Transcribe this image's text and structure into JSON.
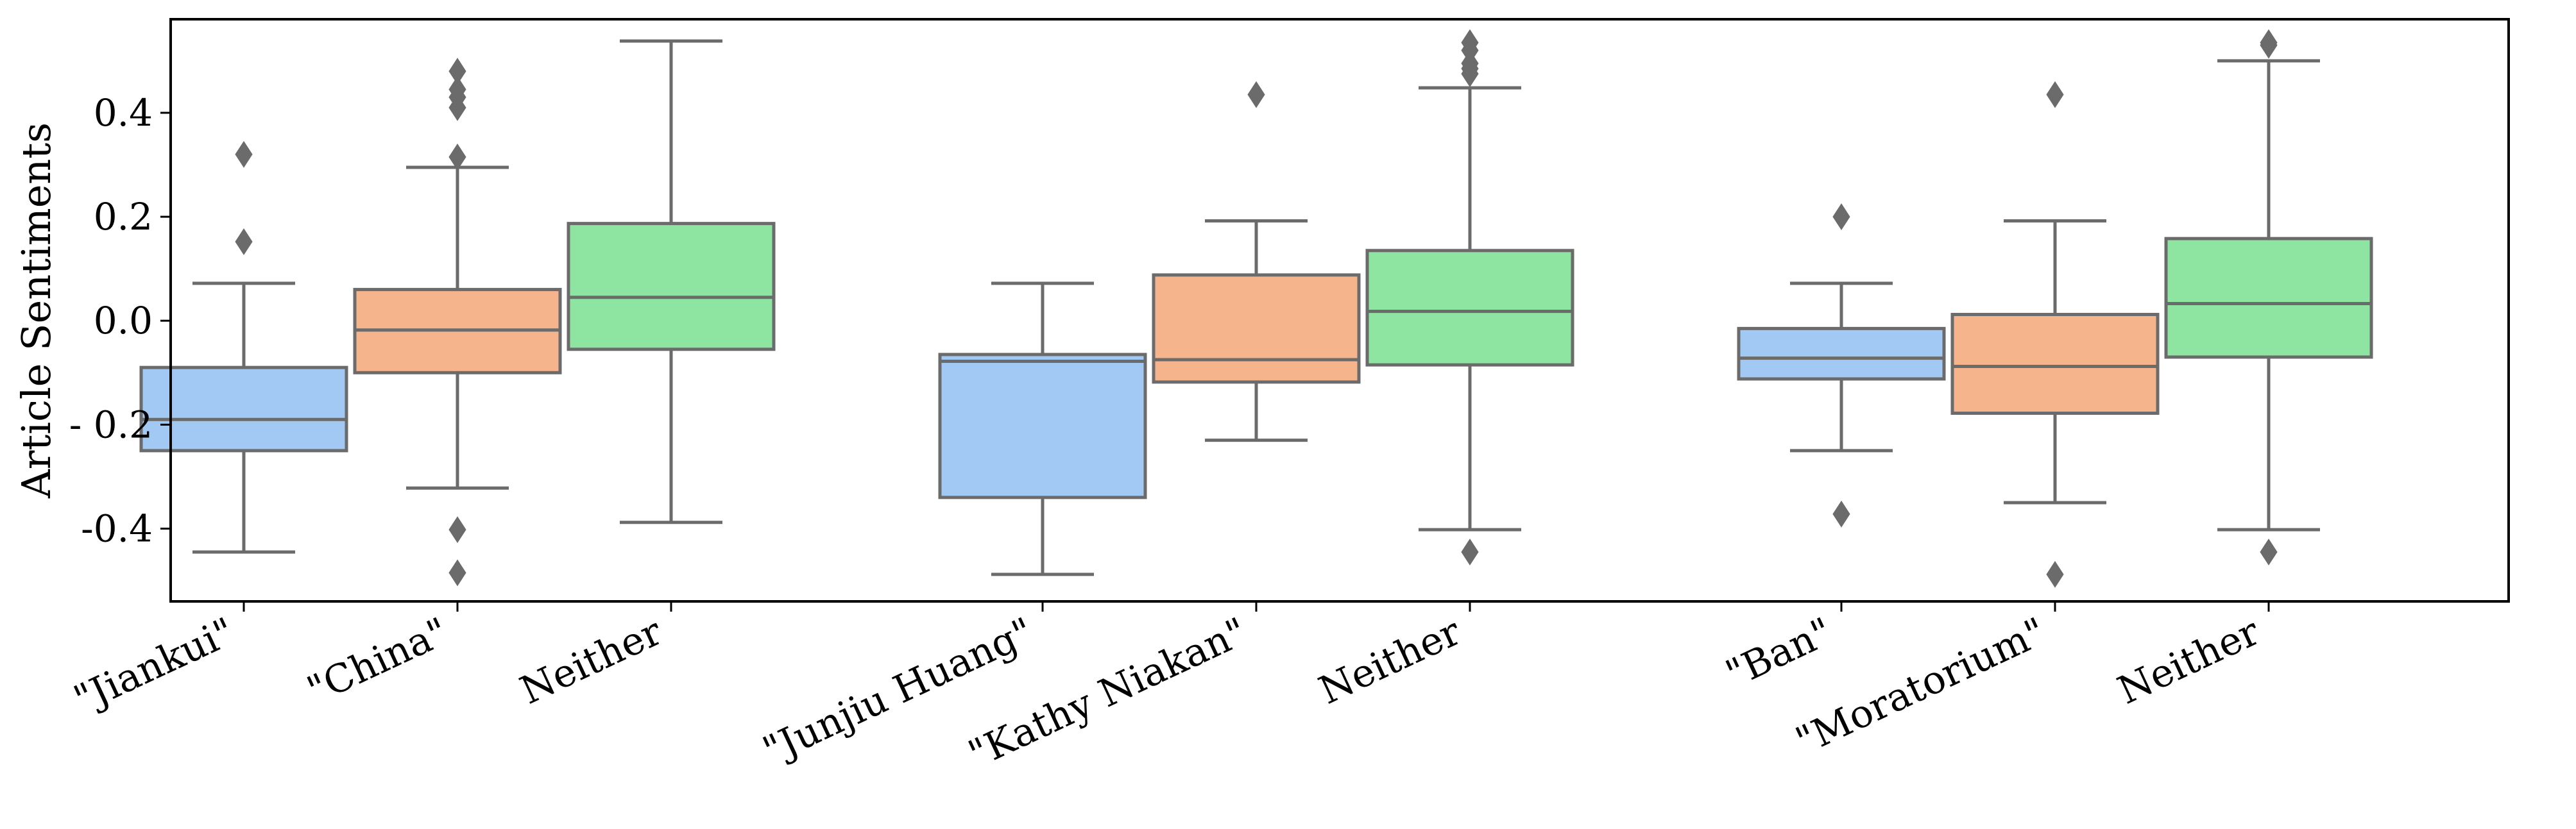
{
  "chart_data": {
    "type": "box",
    "title": "",
    "xlabel": "",
    "ylabel": "Article Sentiments",
    "ylim": [
      -0.54,
      0.58
    ],
    "yticks": [
      0.4,
      0.2,
      0.0,
      -0.2,
      -0.4
    ],
    "ytick_labels": [
      "0.4",
      "0.2",
      "0.0",
      "- 0.2",
      "-0.4"
    ],
    "grid": false,
    "legend": "none",
    "colors": {
      "a": "#a1c9f4",
      "b": "#f6b48d",
      "c": "#8de5a1",
      "line": "#6b6b6b",
      "frame": "#000000"
    },
    "groups": [
      {
        "boxes": [
          {
            "label": "\"Jiankui\"",
            "color": "a",
            "min": -0.445,
            "q1": -0.25,
            "median": -0.19,
            "q3": -0.09,
            "max": 0.072,
            "fliers": [
              0.32,
              0.152
            ]
          },
          {
            "label": "\"China\"",
            "color": "b",
            "min": -0.322,
            "q1": -0.1,
            "median": -0.018,
            "q3": 0.06,
            "max": 0.295,
            "fliers": [
              0.48,
              0.445,
              0.43,
              0.41,
              0.315,
              -0.402,
              -0.485
            ]
          },
          {
            "label": "Neither",
            "color": "c",
            "min": -0.388,
            "q1": -0.055,
            "median": 0.045,
            "q3": 0.187,
            "max": 0.538,
            "fliers": []
          }
        ]
      },
      {
        "boxes": [
          {
            "label": "\"Junjiu Huang\"",
            "color": "a",
            "min": -0.488,
            "q1": -0.34,
            "median": -0.078,
            "q3": -0.065,
            "max": 0.072,
            "fliers": []
          },
          {
            "label": "\"Kathy Niakan\"",
            "color": "b",
            "min": -0.23,
            "q1": -0.118,
            "median": -0.075,
            "q3": 0.088,
            "max": 0.192,
            "fliers": [
              0.435
            ]
          },
          {
            "label": "Neither",
            "color": "c",
            "min": -0.402,
            "q1": -0.085,
            "median": 0.018,
            "q3": 0.135,
            "max": 0.448,
            "fliers": [
              0.535,
              0.52,
              0.495,
              0.485,
              0.475,
              -0.445
            ]
          }
        ]
      },
      {
        "boxes": [
          {
            "label": "\"Ban\"",
            "color": "a",
            "min": -0.25,
            "q1": -0.112,
            "median": -0.072,
            "q3": -0.015,
            "max": 0.072,
            "fliers": [
              0.2,
              -0.372
            ]
          },
          {
            "label": "\"Moratorium\"",
            "color": "b",
            "min": -0.35,
            "q1": -0.178,
            "median": -0.088,
            "q3": 0.012,
            "max": 0.192,
            "fliers": [
              0.435,
              -0.488
            ]
          },
          {
            "label": "Neither",
            "color": "c",
            "min": -0.402,
            "q1": -0.07,
            "median": 0.033,
            "q3": 0.158,
            "max": 0.5,
            "fliers": [
              0.535,
              0.53,
              -0.445
            ]
          }
        ]
      }
    ]
  }
}
